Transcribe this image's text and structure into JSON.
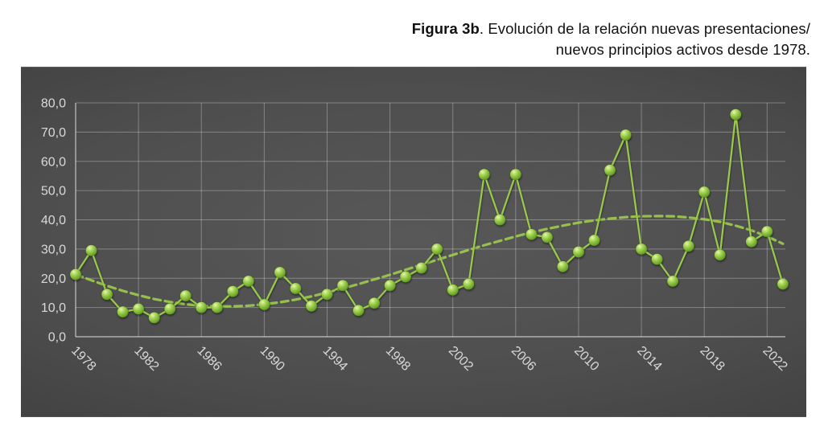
{
  "caption": {
    "bold": "Figura 3b",
    "line1": ". Evolución de la relación nuevas presentaciones/",
    "line2": "nuevos principios activos desde 1978."
  },
  "chart_data": {
    "type": "line",
    "title": "Evolución de la relación nuevas presentaciones/nuevos principios activos desde 1978",
    "xlabel": "",
    "ylabel": "",
    "x": [
      1978,
      1979,
      1980,
      1981,
      1982,
      1983,
      1984,
      1985,
      1986,
      1987,
      1988,
      1989,
      1990,
      1991,
      1992,
      1993,
      1994,
      1995,
      1996,
      1997,
      1998,
      1999,
      2000,
      2001,
      2002,
      2003,
      2004,
      2005,
      2006,
      2007,
      2008,
      2009,
      2010,
      2011,
      2012,
      2013,
      2014,
      2015,
      2016,
      2017,
      2018,
      2019,
      2020,
      2021,
      2022,
      2023
    ],
    "series": [
      {
        "name": "Relación nuevas presentaciones / nuevos principios activos",
        "style": "line-markers",
        "values": [
          21.3,
          29.5,
          14.5,
          8.5,
          9.5,
          6.5,
          9.5,
          14.0,
          10.0,
          10.0,
          15.5,
          19.0,
          11.0,
          22.0,
          16.5,
          10.5,
          14.5,
          17.5,
          9.0,
          11.5,
          17.5,
          20.5,
          23.5,
          30.0,
          16.0,
          18.0,
          55.5,
          40.0,
          55.5,
          35.0,
          34.0,
          24.0,
          29.0,
          33.0,
          57.0,
          69.0,
          30.0,
          26.5,
          19.0,
          31.0,
          49.5,
          28.0,
          76.0,
          32.5,
          36.0,
          18.0
        ]
      },
      {
        "name": "Tendencia (polinómica)",
        "style": "dashed-trend",
        "values": [
          21.3,
          19.3,
          17.4,
          15.7,
          14.2,
          12.9,
          11.9,
          11.1,
          10.6,
          10.4,
          10.4,
          10.6,
          11.1,
          11.8,
          12.7,
          13.8,
          15.1,
          16.5,
          18.0,
          19.6,
          21.2,
          22.9,
          24.6,
          26.3,
          28.0,
          29.7,
          31.3,
          32.8,
          34.3,
          35.7,
          36.9,
          38.0,
          39.0,
          39.8,
          40.4,
          40.9,
          41.2,
          41.3,
          41.2,
          40.8,
          40.2,
          39.3,
          38.0,
          36.4,
          34.3,
          31.8
        ]
      }
    ],
    "ylim": [
      0,
      80
    ],
    "ytick_step": 10,
    "ytick_labels": [
      "0,0",
      "10,0",
      "20,0",
      "30,0",
      "40,0",
      "50,0",
      "60,0",
      "70,0",
      "80,0"
    ],
    "xtick_years": [
      1978,
      1982,
      1986,
      1990,
      1994,
      1998,
      2002,
      2006,
      2010,
      2014,
      2018,
      2022
    ],
    "xtick_labels": [
      "1978",
      "1982",
      "1986",
      "1990",
      "1994",
      "1998",
      "2002",
      "2006",
      "2010",
      "2014",
      "2018",
      "2022"
    ],
    "grid": true,
    "legend_position": "none",
    "colors": {
      "line": "#9aca4a",
      "marker_light": "#e9f7b2",
      "marker_mid": "#8fc540",
      "marker_dark": "#5a8a24",
      "trend": "#9cc94e",
      "gridline": "rgba(255,255,255,0.30)",
      "axis_line": "rgba(255,255,255,0.55)",
      "tick_text": "#d9d9d9",
      "panel_bg": "#454545",
      "page_bg": "#ffffff",
      "caption_text": "#111111"
    }
  }
}
